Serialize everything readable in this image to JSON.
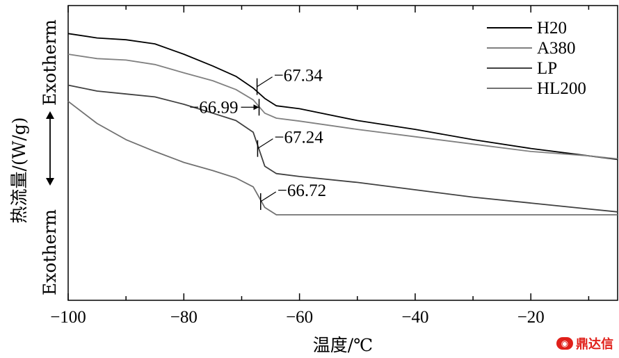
{
  "chart_data": {
    "type": "line",
    "xlabel": "温度/℃",
    "ylabel": "热流量/(W/g)",
    "ylabel_top": "Exotherm",
    "ylabel_bottom": "Exotherm",
    "xlim": [
      -100,
      -5
    ],
    "x_ticks": [
      -100,
      -80,
      -60,
      -40,
      -20
    ],
    "x_tick_labels": [
      "−100",
      "−80",
      "−60",
      "−40",
      "−20"
    ],
    "y_ticks_labeled": false,
    "grid": false,
    "legend_position": "top-right",
    "series": [
      {
        "name": "H20",
        "color": "#000000",
        "points": [
          [
            -100,
            0.905
          ],
          [
            -95,
            0.89
          ],
          [
            -90,
            0.884
          ],
          [
            -85,
            0.87
          ],
          [
            -80,
            0.835
          ],
          [
            -75,
            0.795
          ],
          [
            -71,
            0.76
          ],
          [
            -68,
            0.72
          ],
          [
            -66,
            0.685
          ],
          [
            -64,
            0.66
          ],
          [
            -60,
            0.65
          ],
          [
            -50,
            0.61
          ],
          [
            -40,
            0.58
          ],
          [
            -30,
            0.545
          ],
          [
            -20,
            0.515
          ],
          [
            -10,
            0.49
          ],
          [
            -5,
            0.478
          ]
        ]
      },
      {
        "name": "A380",
        "color": "#808080",
        "points": [
          [
            -100,
            0.835
          ],
          [
            -95,
            0.82
          ],
          [
            -90,
            0.815
          ],
          [
            -85,
            0.8
          ],
          [
            -80,
            0.772
          ],
          [
            -75,
            0.745
          ],
          [
            -71,
            0.715
          ],
          [
            -68,
            0.68
          ],
          [
            -66,
            0.635
          ],
          [
            -64,
            0.618
          ],
          [
            -60,
            0.608
          ],
          [
            -50,
            0.58
          ],
          [
            -40,
            0.555
          ],
          [
            -30,
            0.53
          ],
          [
            -20,
            0.505
          ],
          [
            -10,
            0.49
          ],
          [
            -5,
            0.48
          ]
        ]
      },
      {
        "name": "LP",
        "color": "#404040",
        "points": [
          [
            -100,
            0.73
          ],
          [
            -95,
            0.71
          ],
          [
            -90,
            0.7
          ],
          [
            -85,
            0.69
          ],
          [
            -80,
            0.665
          ],
          [
            -75,
            0.635
          ],
          [
            -71,
            0.61
          ],
          [
            -68,
            0.57
          ],
          [
            -66,
            0.455
          ],
          [
            -64,
            0.43
          ],
          [
            -60,
            0.42
          ],
          [
            -50,
            0.4
          ],
          [
            -40,
            0.375
          ],
          [
            -30,
            0.35
          ],
          [
            -20,
            0.33
          ],
          [
            -10,
            0.31
          ],
          [
            -5,
            0.3
          ]
        ]
      },
      {
        "name": "HL200",
        "color": "#707070",
        "points": [
          [
            -100,
            0.675
          ],
          [
            -95,
            0.6
          ],
          [
            -90,
            0.545
          ],
          [
            -85,
            0.505
          ],
          [
            -80,
            0.468
          ],
          [
            -75,
            0.44
          ],
          [
            -71,
            0.415
          ],
          [
            -68,
            0.385
          ],
          [
            -66,
            0.315
          ],
          [
            -64,
            0.29
          ],
          [
            -60,
            0.29
          ],
          [
            -50,
            0.29
          ],
          [
            -40,
            0.29
          ],
          [
            -30,
            0.29
          ],
          [
            -20,
            0.29
          ],
          [
            -10,
            0.29
          ],
          [
            -5,
            0.29
          ]
        ]
      }
    ],
    "annotations": [
      {
        "text": "−67.34",
        "x": -67.34,
        "y": 0.725,
        "side": "right",
        "series": "H20"
      },
      {
        "text": "−66.99",
        "x": -66.99,
        "y": 0.655,
        "side": "left",
        "series": "A380"
      },
      {
        "text": "−67.24",
        "x": -67.24,
        "y": 0.515,
        "side": "right",
        "series": "LP"
      },
      {
        "text": "−66.72",
        "x": -66.72,
        "y": 0.335,
        "side": "right",
        "series": "HL200"
      }
    ]
  },
  "watermark": {
    "text": "鼎达信",
    "icon": "logo-icon",
    "color": "#e0201a"
  }
}
